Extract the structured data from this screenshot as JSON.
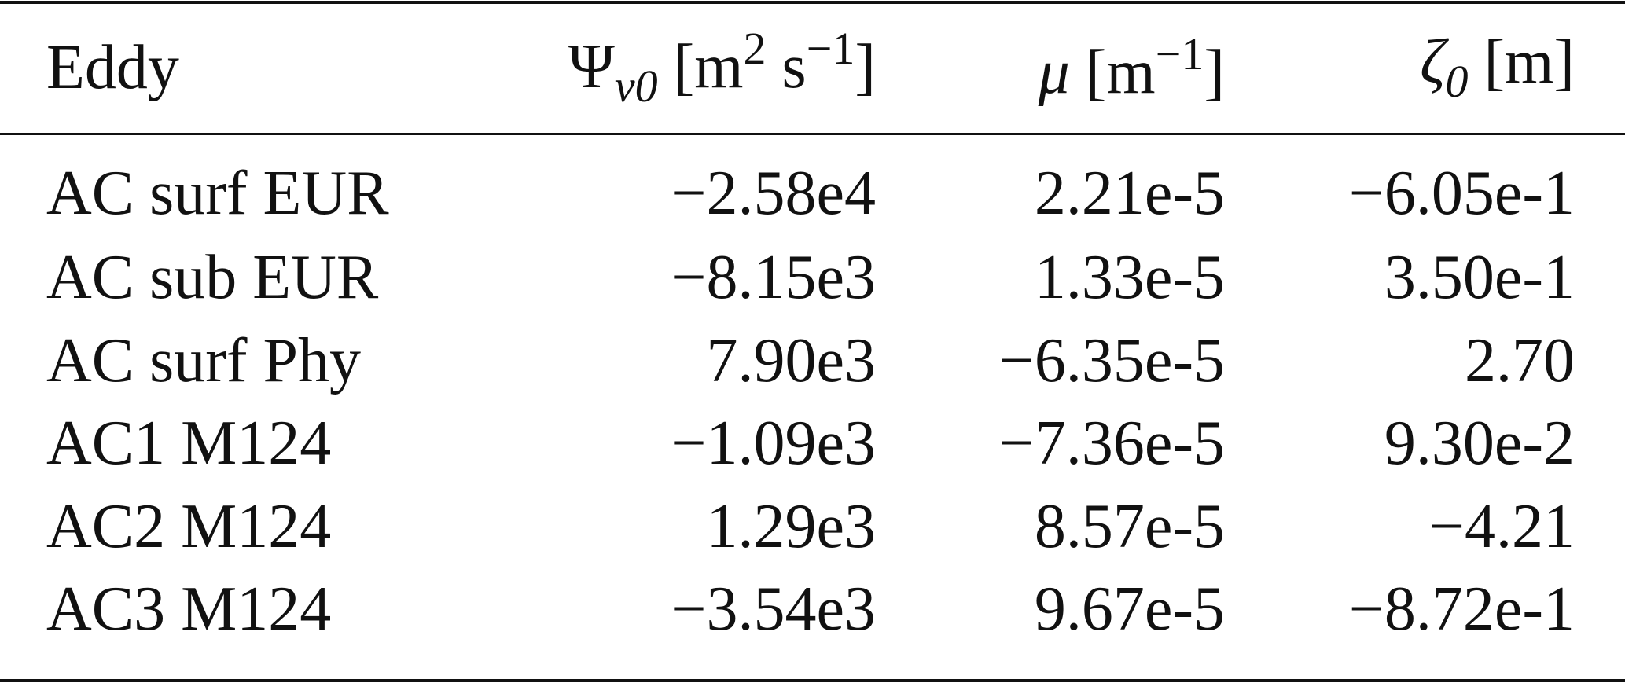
{
  "table": {
    "header": [
      [
        {
          "text": "Eddy"
        }
      ],
      [
        {
          "text": "Ψ",
          "style": "italic-upright"
        },
        {
          "text": "v0",
          "style": "sub"
        },
        {
          "text": " [m"
        },
        {
          "text": "2",
          "style": "sup"
        },
        {
          "text": " s"
        },
        {
          "text": "−1",
          "style": "sup"
        },
        {
          "text": "]"
        }
      ],
      [
        {
          "text": "μ",
          "style": "italic"
        },
        {
          "text": " [m"
        },
        {
          "text": "−1",
          "style": "sup"
        },
        {
          "text": "]"
        }
      ],
      [
        {
          "text": "ζ",
          "style": "italic"
        },
        {
          "text": "0",
          "style": "sub"
        },
        {
          "text": " [m]"
        }
      ]
    ],
    "rows": [
      [
        "AC surf EUR",
        "−2.58e4",
        "2.21e-5",
        "−6.05e-1"
      ],
      [
        "AC sub EUR",
        "−8.15e3",
        "1.33e-5",
        "3.50e-1"
      ],
      [
        "AC surf Phy",
        "7.90e3",
        "−6.35e-5",
        "2.70"
      ],
      [
        "AC1 M124",
        "−1.09e3",
        "−7.36e-5",
        "9.30e-2"
      ],
      [
        "AC2 M124",
        "1.29e3",
        "8.57e-5",
        "−4.21"
      ],
      [
        "AC3 M124",
        "−3.54e3",
        "9.67e-5",
        "−8.72e-1"
      ]
    ]
  }
}
